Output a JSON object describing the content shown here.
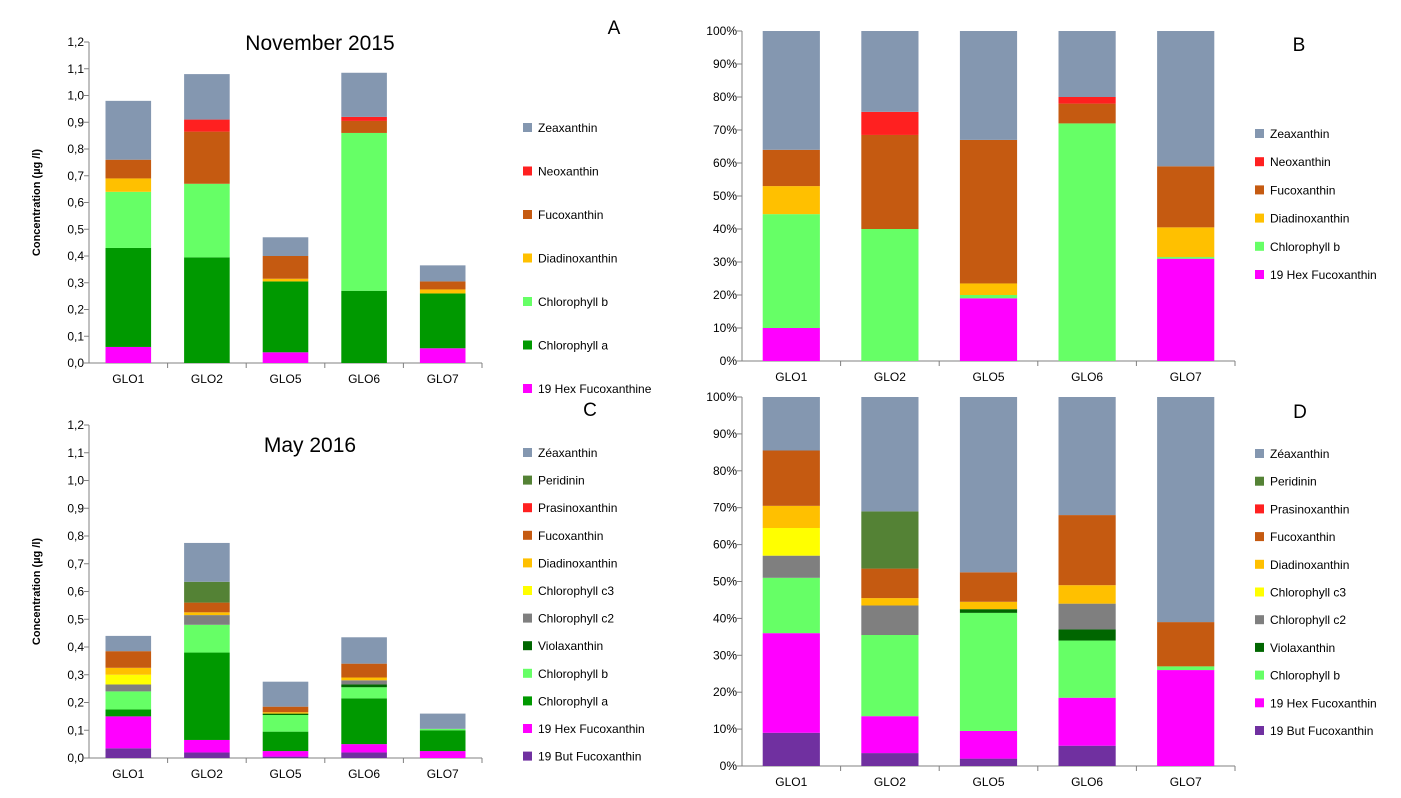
{
  "chart_data": [
    {
      "panel_letter": "A",
      "type": "bar",
      "stacked": true,
      "title": "November 2015",
      "xlabel": "",
      "ylabel": "Concentration (µg /l)",
      "ylim": [
        0,
        1.2
      ],
      "yticks": [
        "0,0",
        "0,1",
        "0,2",
        "0,3",
        "0,4",
        "0,5",
        "0,6",
        "0,7",
        "0,8",
        "0,9",
        "1,0",
        "1,1",
        "1,2"
      ],
      "categories": [
        "GLO1",
        "GLO2",
        "GLO5",
        "GLO6",
        "GLO7"
      ],
      "legend": "right",
      "series": [
        {
          "name": "19 Hex Fucoxanthine",
          "color": "#ff00ff",
          "values": [
            0.06,
            0.0,
            0.04,
            0.0,
            0.055
          ]
        },
        {
          "name": "Chlorophyll a",
          "color": "#009900",
          "values": [
            0.37,
            0.395,
            0.265,
            0.27,
            0.205
          ]
        },
        {
          "name": "Chlorophyll b",
          "color": "#66ff66",
          "values": [
            0.21,
            0.275,
            0.0,
            0.59,
            0.0
          ]
        },
        {
          "name": "Diadinoxanthin",
          "color": "#ffc000",
          "values": [
            0.05,
            0.0,
            0.01,
            0.0,
            0.015
          ]
        },
        {
          "name": "Fucoxanthin",
          "color": "#c55a11",
          "values": [
            0.07,
            0.195,
            0.085,
            0.045,
            0.03
          ]
        },
        {
          "name": "Neoxanthin",
          "color": "#ff2020",
          "values": [
            0.0,
            0.045,
            0.0,
            0.015,
            0.0
          ]
        },
        {
          "name": "Zeaxanthin",
          "color": "#8497b0",
          "values": [
            0.22,
            0.17,
            0.07,
            0.165,
            0.06
          ]
        }
      ]
    },
    {
      "panel_letter": "B",
      "type": "bar",
      "stacked": true,
      "title": "",
      "xlabel": "",
      "ylabel": "",
      "ylim": [
        0,
        100
      ],
      "yticks": [
        "0%",
        "10%",
        "20%",
        "30%",
        "40%",
        "50%",
        "60%",
        "70%",
        "80%",
        "90%",
        "100%"
      ],
      "categories": [
        "GLO1",
        "GLO2",
        "GLO5",
        "GLO6",
        "GLO7"
      ],
      "legend": "right",
      "series": [
        {
          "name": "19 Hex Fucoxanthin",
          "color": "#ff00ff",
          "values": [
            10,
            0,
            19,
            0,
            31
          ]
        },
        {
          "name": "Chlorophyll b",
          "color": "#66ff66",
          "values": [
            34.5,
            40,
            1,
            72,
            0.5
          ]
        },
        {
          "name": "Diadinoxanthin",
          "color": "#ffc000",
          "values": [
            8.5,
            0,
            3.5,
            0,
            9
          ]
        },
        {
          "name": "Fucoxanthin",
          "color": "#c55a11",
          "values": [
            11,
            28.5,
            43.5,
            6,
            18.5
          ]
        },
        {
          "name": "Neoxanthin",
          "color": "#ff2020",
          "values": [
            0,
            7,
            0,
            2,
            0
          ]
        },
        {
          "name": "Zeaxanthin",
          "color": "#8497b0",
          "values": [
            36,
            24.5,
            33,
            20,
            41
          ]
        }
      ]
    },
    {
      "panel_letter": "C",
      "type": "bar",
      "stacked": true,
      "title": "May 2016",
      "xlabel": "",
      "ylabel": "Concentration (µg /l)",
      "ylim": [
        0,
        1.2
      ],
      "yticks": [
        "0,0",
        "0,1",
        "0,2",
        "0,3",
        "0,4",
        "0,5",
        "0,6",
        "0,7",
        "0,8",
        "0,9",
        "1,0",
        "1,1",
        "1,2"
      ],
      "categories": [
        "GLO1",
        "GLO2",
        "GLO5",
        "GLO6",
        "GLO7"
      ],
      "legend": "right",
      "series": [
        {
          "name": "19 But Fucoxanthin",
          "color": "#7030a0",
          "values": [
            0.035,
            0.02,
            0.005,
            0.02,
            0.0
          ]
        },
        {
          "name": "19 Hex Fucoxanthin",
          "color": "#ff00ff",
          "values": [
            0.115,
            0.045,
            0.02,
            0.03,
            0.025
          ]
        },
        {
          "name": "Chlorophyll a",
          "color": "#009900",
          "values": [
            0.025,
            0.315,
            0.07,
            0.165,
            0.075
          ]
        },
        {
          "name": "Chlorophyll b",
          "color": "#66ff66",
          "values": [
            0.065,
            0.1,
            0.06,
            0.04,
            0.005
          ]
        },
        {
          "name": "Violaxanthin",
          "color": "#006600",
          "values": [
            0.0,
            0.0,
            0.005,
            0.01,
            0.0
          ]
        },
        {
          "name": "Chlorophyll c2",
          "color": "#7f7f7f",
          "values": [
            0.025,
            0.035,
            0.0,
            0.015,
            0.0
          ]
        },
        {
          "name": "Chlorophyll c3",
          "color": "#ffff00",
          "values": [
            0.035,
            0.0,
            0.0,
            0.0,
            0.0
          ]
        },
        {
          "name": "Diadinoxanthin",
          "color": "#ffc000",
          "values": [
            0.025,
            0.01,
            0.005,
            0.01,
            0.0
          ]
        },
        {
          "name": "Fucoxanthin",
          "color": "#c55a11",
          "values": [
            0.06,
            0.035,
            0.02,
            0.05,
            0.0
          ]
        },
        {
          "name": "Prasinoxanthin",
          "color": "#ff2020",
          "values": [
            0.0,
            0.0,
            0.0,
            0.0,
            0.0
          ]
        },
        {
          "name": "Peridinin",
          "color": "#548235",
          "values": [
            0.0,
            0.075,
            0.0,
            0.0,
            0.0
          ]
        },
        {
          "name": "Zéaxanthin",
          "color": "#8497b0",
          "values": [
            0.055,
            0.14,
            0.09,
            0.095,
            0.055
          ]
        }
      ]
    },
    {
      "panel_letter": "D",
      "type": "bar",
      "stacked": true,
      "title": "",
      "xlabel": "",
      "ylabel": "",
      "ylim": [
        0,
        100
      ],
      "yticks": [
        "0%",
        "10%",
        "20%",
        "30%",
        "40%",
        "50%",
        "60%",
        "70%",
        "80%",
        "90%",
        "100%"
      ],
      "categories": [
        "GLO1",
        "GLO2",
        "GLO5",
        "GLO6",
        "GLO7"
      ],
      "legend": "right",
      "series": [
        {
          "name": "19 But Fucoxanthin",
          "color": "#7030a0",
          "values": [
            9,
            3.5,
            2,
            5.5,
            0
          ]
        },
        {
          "name": "19 Hex Fucoxanthin",
          "color": "#ff00ff",
          "values": [
            27,
            10,
            7.5,
            13,
            26
          ]
        },
        {
          "name": "Chlorophyll b",
          "color": "#66ff66",
          "values": [
            15,
            22,
            32,
            15.5,
            1
          ]
        },
        {
          "name": "Violaxanthin",
          "color": "#006600",
          "values": [
            0,
            0,
            1,
            3,
            0
          ]
        },
        {
          "name": "Chlorophyll c2",
          "color": "#7f7f7f",
          "values": [
            6,
            8,
            0,
            7,
            0
          ]
        },
        {
          "name": "Chlorophyll c3",
          "color": "#ffff00",
          "values": [
            7.5,
            0,
            0,
            0,
            0
          ]
        },
        {
          "name": "Diadinoxanthin",
          "color": "#ffc000",
          "values": [
            6,
            2,
            2,
            5,
            0
          ]
        },
        {
          "name": "Fucoxanthin",
          "color": "#c55a11",
          "values": [
            15,
            8,
            8,
            19,
            12
          ]
        },
        {
          "name": "Prasinoxanthin",
          "color": "#ff2020",
          "values": [
            0,
            0,
            0,
            0,
            0
          ]
        },
        {
          "name": "Peridinin",
          "color": "#548235",
          "values": [
            0,
            15.5,
            0,
            0,
            0
          ]
        },
        {
          "name": "Zéaxanthin",
          "color": "#8497b0",
          "values": [
            14.5,
            31,
            47.5,
            32,
            61
          ]
        }
      ]
    }
  ]
}
